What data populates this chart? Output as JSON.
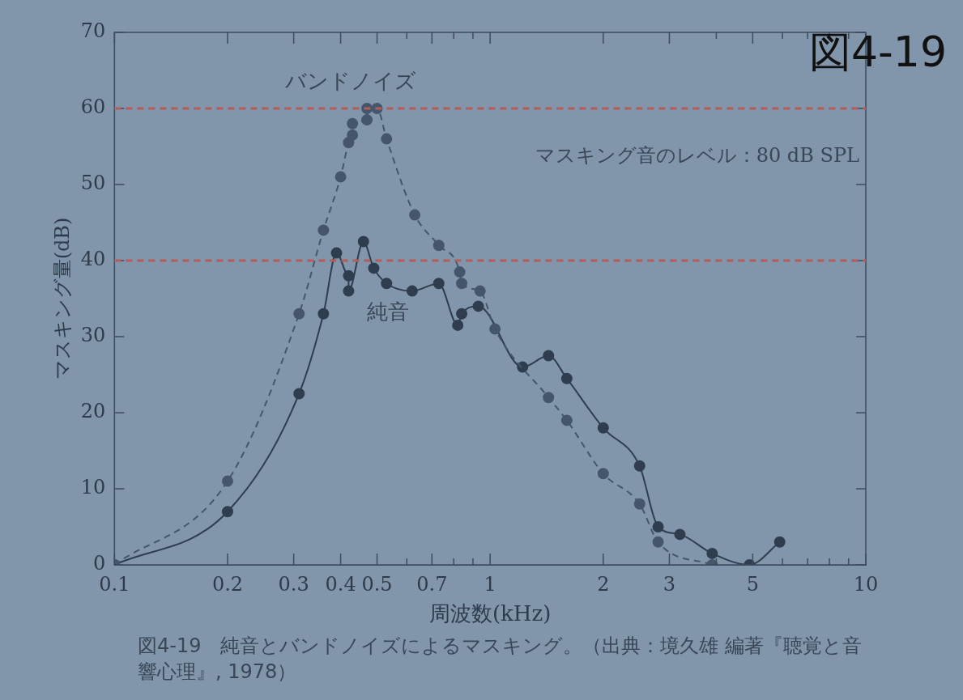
{
  "chart_data": {
    "type": "line",
    "title": "図4-19",
    "xlabel": "周波数(kHz)",
    "ylabel": "マスキング量(dB)",
    "annotations": [
      "マスキング音のレベル：80 dB SPL",
      "図4-19　純音とバンドノイズによるマスキング。（出典：境久雄 編著『聴覚と音響心理』, 1978）"
    ],
    "log": "x",
    "xlim": [
      0.1,
      10
    ],
    "ylim": [
      0,
      70
    ],
    "xticks": [
      0.1,
      0.2,
      0.3,
      0.4,
      0.5,
      {
        "value": 0.6,
        "label": null
      },
      0.7,
      {
        "value": 0.8,
        "label": null
      },
      {
        "value": 0.9,
        "label": null
      },
      1,
      2,
      3,
      {
        "value": 4,
        "label": null
      },
      5,
      {
        "value": 6,
        "label": null
      },
      {
        "value": 7,
        "label": null
      },
      {
        "value": 8,
        "label": null
      },
      {
        "value": 9,
        "label": null
      },
      10
    ],
    "yticks": [
      0,
      10,
      20,
      30,
      40,
      50,
      60,
      70
    ],
    "grid": false,
    "marker": "circle",
    "series": [
      {
        "name": "バンドノイズ",
        "color": "#46566a",
        "line_style": "dashed",
        "x": [
          0.1,
          0.2,
          0.31,
          0.36,
          0.4,
          0.42,
          0.43,
          0.43,
          0.47,
          0.47,
          0.5,
          0.53,
          0.63,
          0.73,
          0.83,
          0.84,
          0.94,
          1.03,
          1.43,
          1.6,
          2.0,
          2.5,
          2.8,
          3.9
        ],
        "values": [
          0,
          11,
          33,
          44,
          51,
          55.5,
          56.5,
          58,
          58.5,
          60,
          60,
          56,
          46,
          42,
          38.5,
          37,
          36,
          31,
          22,
          19,
          12,
          8,
          3,
          0
        ]
      },
      {
        "name": "純音",
        "color": "#2f3d4e",
        "line_style": "solid",
        "x": [
          0.1,
          0.2,
          0.31,
          0.36,
          0.39,
          0.42,
          0.42,
          0.46,
          0.49,
          0.53,
          0.62,
          0.73,
          0.82,
          0.84,
          0.93,
          1.22,
          1.43,
          1.6,
          2.0,
          2.5,
          2.8,
          3.2,
          3.9,
          4.9,
          5.9
        ],
        "values": [
          0,
          7,
          22.5,
          33,
          41,
          38,
          36,
          42.5,
          39,
          37,
          36,
          37,
          31.5,
          33,
          34,
          26,
          27.5,
          24.5,
          18,
          13,
          5,
          4,
          1.5,
          0,
          3
        ]
      }
    ],
    "ref_lines": [
      {
        "axis": "y",
        "value": 60,
        "color": "#b25c5c",
        "line_style": "dashed"
      },
      {
        "axis": "y",
        "value": 40,
        "color": "#b25c5c",
        "line_style": "dashed"
      }
    ]
  }
}
